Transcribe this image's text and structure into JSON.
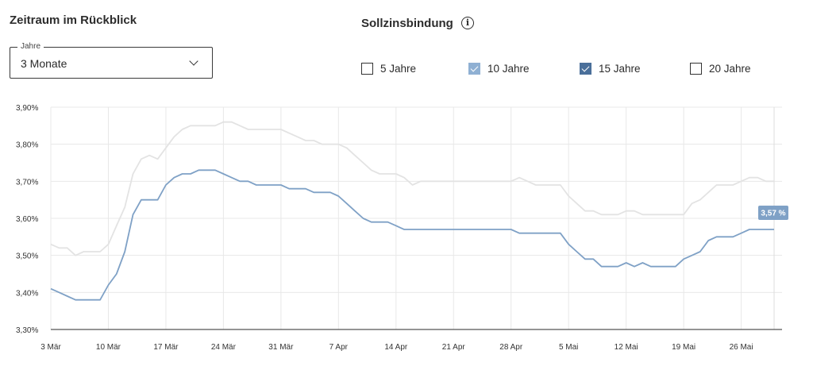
{
  "period_section": {
    "title": "Zeitraum im Rückblick",
    "select_legend": "Jahre",
    "select_value": "3 Monate"
  },
  "fixed_rate_section": {
    "title": "Sollzinsbindung",
    "info_icon": "info-icon",
    "options": [
      {
        "label": "5 Jahre",
        "checked": false,
        "color": ""
      },
      {
        "label": "10 Jahre",
        "checked": true,
        "color": "#8fb0d3"
      },
      {
        "label": "15 Jahre",
        "checked": true,
        "color": "#4a6f9a"
      },
      {
        "label": "20 Jahre",
        "checked": false,
        "color": ""
      }
    ]
  },
  "chart_data": {
    "type": "line",
    "x_start": "3 Mär",
    "x_end": "30 Mai",
    "xticks": [
      "3 Mär",
      "10 Mär",
      "17 Mär",
      "24 Mär",
      "31 Mär",
      "7 Apr",
      "14 Apr",
      "21 Apr",
      "28 Apr",
      "5 Mai",
      "12 Mai",
      "19 Mai",
      "26 Mai"
    ],
    "yticks": [
      "3,30%",
      "3,40%",
      "3,50%",
      "3,60%",
      "3,70%",
      "3,80%",
      "3,90%"
    ],
    "ylim": [
      3.3,
      3.9
    ],
    "grid": true,
    "end_label": "3,57 %",
    "series": [
      {
        "name": "10 Jahre",
        "color": "#e3e3e3",
        "points": [
          [
            "3 Mär",
            3.53
          ],
          [
            "4 Mär",
            3.52
          ],
          [
            "5 Mär",
            3.52
          ],
          [
            "6 Mär",
            3.5
          ],
          [
            "7 Mär",
            3.51
          ],
          [
            "8 Mär",
            3.51
          ],
          [
            "9 Mär",
            3.51
          ],
          [
            "10 Mär",
            3.53
          ],
          [
            "11 Mär",
            3.58
          ],
          [
            "12 Mär",
            3.63
          ],
          [
            "13 Mär",
            3.72
          ],
          [
            "14 Mär",
            3.76
          ],
          [
            "15 Mär",
            3.77
          ],
          [
            "16 Mär",
            3.76
          ],
          [
            "17 Mär",
            3.79
          ],
          [
            "18 Mär",
            3.82
          ],
          [
            "19 Mär",
            3.84
          ],
          [
            "20 Mär",
            3.85
          ],
          [
            "21 Mär",
            3.85
          ],
          [
            "22 Mär",
            3.85
          ],
          [
            "23 Mär",
            3.85
          ],
          [
            "24 Mär",
            3.86
          ],
          [
            "25 Mär",
            3.86
          ],
          [
            "26 Mär",
            3.85
          ],
          [
            "27 Mär",
            3.84
          ],
          [
            "28 Mär",
            3.84
          ],
          [
            "29 Mär",
            3.84
          ],
          [
            "30 Mär",
            3.84
          ],
          [
            "31 Mär",
            3.84
          ],
          [
            "1 Apr",
            3.83
          ],
          [
            "2 Apr",
            3.82
          ],
          [
            "3 Apr",
            3.81
          ],
          [
            "4 Apr",
            3.81
          ],
          [
            "5 Apr",
            3.8
          ],
          [
            "6 Apr",
            3.8
          ],
          [
            "7 Apr",
            3.8
          ],
          [
            "8 Apr",
            3.79
          ],
          [
            "9 Apr",
            3.77
          ],
          [
            "10 Apr",
            3.75
          ],
          [
            "11 Apr",
            3.73
          ],
          [
            "12 Apr",
            3.72
          ],
          [
            "13 Apr",
            3.72
          ],
          [
            "14 Apr",
            3.72
          ],
          [
            "15 Apr",
            3.71
          ],
          [
            "16 Apr",
            3.69
          ],
          [
            "17 Apr",
            3.7
          ],
          [
            "18 Apr",
            3.7
          ],
          [
            "19 Apr",
            3.7
          ],
          [
            "20 Apr",
            3.7
          ],
          [
            "21 Apr",
            3.7
          ],
          [
            "22 Apr",
            3.7
          ],
          [
            "23 Apr",
            3.7
          ],
          [
            "24 Apr",
            3.7
          ],
          [
            "25 Apr",
            3.7
          ],
          [
            "26 Apr",
            3.7
          ],
          [
            "27 Apr",
            3.7
          ],
          [
            "28 Apr",
            3.7
          ],
          [
            "29 Apr",
            3.71
          ],
          [
            "30 Apr",
            3.7
          ],
          [
            "1 Mai",
            3.69
          ],
          [
            "2 Mai",
            3.69
          ],
          [
            "3 Mai",
            3.69
          ],
          [
            "4 Mai",
            3.69
          ],
          [
            "5 Mai",
            3.66
          ],
          [
            "6 Mai",
            3.64
          ],
          [
            "7 Mai",
            3.62
          ],
          [
            "8 Mai",
            3.62
          ],
          [
            "9 Mai",
            3.61
          ],
          [
            "10 Mai",
            3.61
          ],
          [
            "11 Mai",
            3.61
          ],
          [
            "12 Mai",
            3.62
          ],
          [
            "13 Mai",
            3.62
          ],
          [
            "14 Mai",
            3.61
          ],
          [
            "15 Mai",
            3.61
          ],
          [
            "16 Mai",
            3.61
          ],
          [
            "17 Mai",
            3.61
          ],
          [
            "18 Mai",
            3.61
          ],
          [
            "19 Mai",
            3.61
          ],
          [
            "20 Mai",
            3.64
          ],
          [
            "21 Mai",
            3.65
          ],
          [
            "22 Mai",
            3.67
          ],
          [
            "23 Mai",
            3.69
          ],
          [
            "24 Mai",
            3.69
          ],
          [
            "25 Mai",
            3.69
          ],
          [
            "26 Mai",
            3.7
          ],
          [
            "27 Mai",
            3.71
          ],
          [
            "28 Mai",
            3.71
          ],
          [
            "29 Mai",
            3.7
          ],
          [
            "30 Mai",
            3.7
          ]
        ]
      },
      {
        "name": "15 Jahre",
        "color": "#7fa1c6",
        "points": [
          [
            "3 Mär",
            3.41
          ],
          [
            "4 Mär",
            3.4
          ],
          [
            "5 Mär",
            3.39
          ],
          [
            "6 Mär",
            3.38
          ],
          [
            "7 Mär",
            3.38
          ],
          [
            "8 Mär",
            3.38
          ],
          [
            "9 Mär",
            3.38
          ],
          [
            "10 Mär",
            3.42
          ],
          [
            "11 Mär",
            3.45
          ],
          [
            "12 Mär",
            3.51
          ],
          [
            "13 Mär",
            3.61
          ],
          [
            "14 Mär",
            3.65
          ],
          [
            "15 Mär",
            3.65
          ],
          [
            "16 Mär",
            3.65
          ],
          [
            "17 Mär",
            3.69
          ],
          [
            "18 Mär",
            3.71
          ],
          [
            "19 Mär",
            3.72
          ],
          [
            "20 Mär",
            3.72
          ],
          [
            "21 Mär",
            3.73
          ],
          [
            "22 Mär",
            3.73
          ],
          [
            "23 Mär",
            3.73
          ],
          [
            "24 Mär",
            3.72
          ],
          [
            "25 Mär",
            3.71
          ],
          [
            "26 Mär",
            3.7
          ],
          [
            "27 Mär",
            3.7
          ],
          [
            "28 Mär",
            3.69
          ],
          [
            "29 Mär",
            3.69
          ],
          [
            "30 Mär",
            3.69
          ],
          [
            "31 Mär",
            3.69
          ],
          [
            "1 Apr",
            3.68
          ],
          [
            "2 Apr",
            3.68
          ],
          [
            "3 Apr",
            3.68
          ],
          [
            "4 Apr",
            3.67
          ],
          [
            "5 Apr",
            3.67
          ],
          [
            "6 Apr",
            3.67
          ],
          [
            "7 Apr",
            3.66
          ],
          [
            "8 Apr",
            3.64
          ],
          [
            "9 Apr",
            3.62
          ],
          [
            "10 Apr",
            3.6
          ],
          [
            "11 Apr",
            3.59
          ],
          [
            "12 Apr",
            3.59
          ],
          [
            "13 Apr",
            3.59
          ],
          [
            "14 Apr",
            3.58
          ],
          [
            "15 Apr",
            3.57
          ],
          [
            "16 Apr",
            3.57
          ],
          [
            "17 Apr",
            3.57
          ],
          [
            "18 Apr",
            3.57
          ],
          [
            "19 Apr",
            3.57
          ],
          [
            "20 Apr",
            3.57
          ],
          [
            "21 Apr",
            3.57
          ],
          [
            "22 Apr",
            3.57
          ],
          [
            "23 Apr",
            3.57
          ],
          [
            "24 Apr",
            3.57
          ],
          [
            "25 Apr",
            3.57
          ],
          [
            "26 Apr",
            3.57
          ],
          [
            "27 Apr",
            3.57
          ],
          [
            "28 Apr",
            3.57
          ],
          [
            "29 Apr",
            3.56
          ],
          [
            "30 Apr",
            3.56
          ],
          [
            "1 Mai",
            3.56
          ],
          [
            "2 Mai",
            3.56
          ],
          [
            "3 Mai",
            3.56
          ],
          [
            "4 Mai",
            3.56
          ],
          [
            "5 Mai",
            3.53
          ],
          [
            "6 Mai",
            3.51
          ],
          [
            "7 Mai",
            3.49
          ],
          [
            "8 Mai",
            3.49
          ],
          [
            "9 Mai",
            3.47
          ],
          [
            "10 Mai",
            3.47
          ],
          [
            "11 Mai",
            3.47
          ],
          [
            "12 Mai",
            3.48
          ],
          [
            "13 Mai",
            3.47
          ],
          [
            "14 Mai",
            3.48
          ],
          [
            "15 Mai",
            3.47
          ],
          [
            "16 Mai",
            3.47
          ],
          [
            "17 Mai",
            3.47
          ],
          [
            "18 Mai",
            3.47
          ],
          [
            "19 Mai",
            3.49
          ],
          [
            "20 Mai",
            3.5
          ],
          [
            "21 Mai",
            3.51
          ],
          [
            "22 Mai",
            3.54
          ],
          [
            "23 Mai",
            3.55
          ],
          [
            "24 Mai",
            3.55
          ],
          [
            "25 Mai",
            3.55
          ],
          [
            "26 Mai",
            3.56
          ],
          [
            "27 Mai",
            3.57
          ],
          [
            "28 Mai",
            3.57
          ],
          [
            "29 Mai",
            3.57
          ],
          [
            "30 Mai",
            3.57
          ]
        ]
      }
    ]
  }
}
